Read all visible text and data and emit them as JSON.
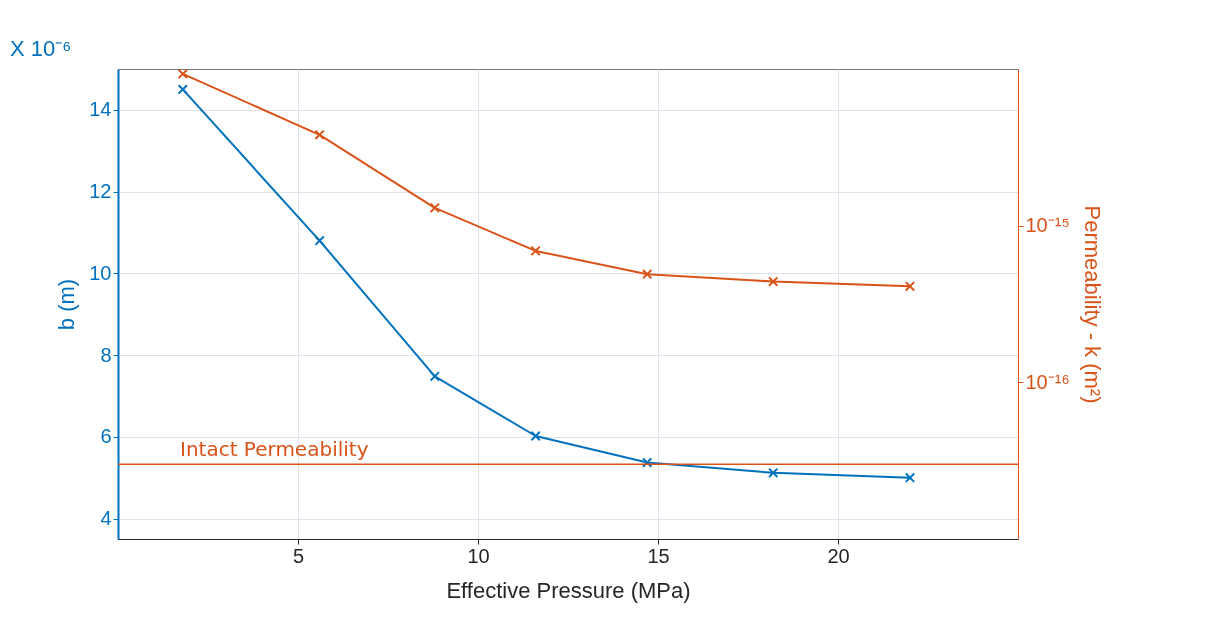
{
  "chart_data": {
    "type": "line",
    "xlabel": "Effective Pressure (MPa)",
    "ylabel": "b (m)",
    "y2label": "Permeability - k (m²)",
    "x": [
      1.8,
      5.6,
      8.8,
      11.6,
      14.7,
      18.2,
      22.0
    ],
    "series": [
      {
        "color": "#0072bd",
        "values": [
          14.5,
          10.8,
          7.48,
          6.02,
          5.37,
          5.12,
          5.0
        ]
      },
      {
        "color": "#d95319",
        "axis": "y2",
        "values": [
          9.3e-15,
          3.8e-15,
          1.3e-15,
          6.9e-16,
          4.9e-16,
          4.4e-16,
          4.1e-16
        ]
      }
    ],
    "xlim": [
      0,
      25
    ],
    "xticks": [
      5,
      10,
      15,
      20
    ],
    "ylim": [
      3.5,
      15
    ],
    "yticks": [
      4,
      6,
      8,
      10,
      12,
      14
    ],
    "y2lim": [
      1e-17,
      1e-14
    ],
    "y2ticks": [
      {
        "value": 1e-16,
        "label": "10⁻¹⁶"
      },
      {
        "value": 1e-15,
        "label": "10⁻¹⁵"
      }
    ],
    "log": "y2",
    "grid": true,
    "marker": "cross",
    "line_style": "solid",
    "ref_lines": [
      {
        "axis": "y2",
        "value": 3e-17,
        "label": "Intact Permeability",
        "color": "#d95319"
      }
    ],
    "annotations": [
      "X 10⁻⁶"
    ]
  }
}
